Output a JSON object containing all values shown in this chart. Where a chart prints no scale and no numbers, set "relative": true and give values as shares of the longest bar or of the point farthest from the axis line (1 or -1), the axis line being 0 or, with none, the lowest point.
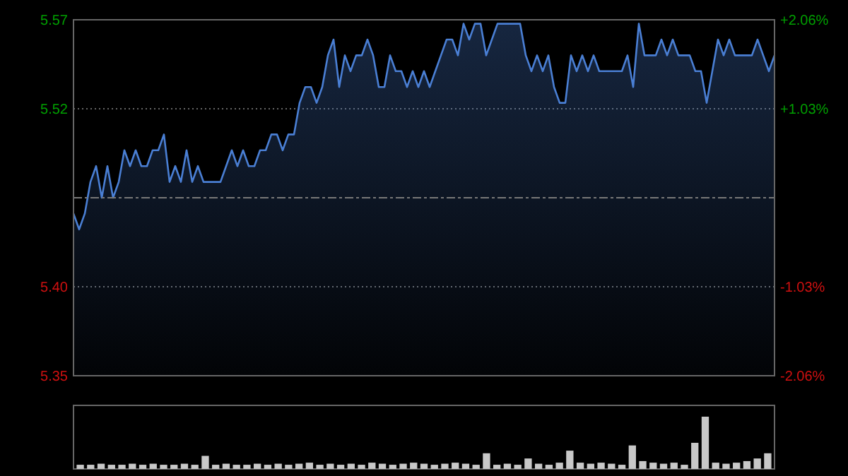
{
  "chart_data": [
    {
      "type": "area",
      "categories": [
        null,
        null,
        null,
        null,
        null,
        null,
        null,
        null,
        null,
        null,
        null,
        null,
        null,
        null,
        null,
        null,
        null,
        null,
        null,
        null,
        null,
        null,
        null,
        null,
        null,
        null,
        null,
        null,
        null,
        null,
        null,
        null,
        null,
        null,
        null,
        null,
        null,
        null,
        null,
        null,
        null,
        null,
        null,
        null,
        null,
        null,
        null,
        null,
        null,
        null,
        null,
        null,
        null,
        null,
        null,
        null,
        null,
        null,
        null,
        null,
        null,
        null,
        null,
        null,
        null,
        null,
        null,
        null,
        null,
        null,
        null,
        null,
        null,
        null,
        null,
        null,
        null,
        null,
        null,
        null,
        null,
        null,
        null,
        null,
        null,
        null,
        null,
        null,
        null,
        null,
        null,
        null,
        null,
        null,
        null,
        null,
        null,
        null,
        null,
        null,
        null,
        null,
        null,
        null,
        null,
        null,
        null,
        null,
        null,
        null,
        null,
        null,
        null,
        null,
        null,
        null,
        null,
        null,
        null,
        null,
        null,
        null,
        null,
        null,
        null
      ],
      "series": [
        {
          "color": "#4a7fd4",
          "values": [
            5.45,
            5.44,
            5.45,
            5.47,
            5.48,
            5.46,
            5.48,
            5.46,
            5.47,
            5.49,
            5.48,
            5.49,
            5.48,
            5.48,
            5.49,
            5.49,
            5.5,
            5.47,
            5.48,
            5.47,
            5.49,
            5.47,
            5.48,
            5.47,
            5.47,
            5.47,
            5.47,
            5.48,
            5.49,
            5.48,
            5.49,
            5.48,
            5.48,
            5.49,
            5.49,
            5.5,
            5.5,
            5.49,
            5.5,
            5.5,
            5.52,
            5.53,
            5.53,
            5.52,
            5.53,
            5.55,
            5.56,
            5.53,
            5.55,
            5.54,
            5.55,
            5.55,
            5.56,
            5.55,
            5.53,
            5.53,
            5.55,
            5.54,
            5.54,
            5.53,
            5.54,
            5.53,
            5.54,
            5.53,
            5.54,
            5.55,
            5.56,
            5.56,
            5.55,
            5.57,
            5.56,
            5.57,
            5.57,
            5.55,
            5.56,
            5.57,
            5.57,
            5.57,
            5.57,
            5.57,
            5.55,
            5.54,
            5.55,
            5.54,
            5.55,
            5.53,
            5.52,
            5.52,
            5.55,
            5.54,
            5.55,
            5.54,
            5.55,
            5.54,
            5.54,
            5.54,
            5.54,
            5.54,
            5.55,
            5.53,
            5.57,
            5.55,
            5.55,
            5.55,
            5.56,
            5.55,
            5.56,
            5.55,
            5.55,
            5.55,
            5.54,
            5.54,
            5.52,
            5.54,
            5.56,
            5.55,
            5.56,
            5.55,
            5.55,
            5.55,
            5.55,
            5.56,
            5.55,
            5.54,
            5.55
          ]
        }
      ],
      "ylim": [
        5.3475,
        5.5725
      ],
      "yticks": [
        {
          "value": 5.3475,
          "label": "5.35"
        },
        {
          "value": 5.4038,
          "label": "5.40"
        },
        {
          "value": 5.5162,
          "label": "5.52"
        },
        {
          "value": 5.5725,
          "label": "5.57"
        }
      ],
      "y2lim": [
        -2.06,
        2.06
      ],
      "y2ticks": [
        {
          "value": -2.06,
          "label": "-2.06%"
        },
        {
          "value": -1.03,
          "label": "-1.03%"
        },
        {
          "value": 1.03,
          "label": "+1.03%"
        },
        {
          "value": 2.06,
          "label": "+2.06%"
        }
      ],
      "ref_lines": [
        {
          "axis": "y",
          "value": 5.46,
          "line_style": "dashed"
        }
      ],
      "grid": "y"
    },
    {
      "type": "bar",
      "relative": true,
      "color": "#c8c8c8",
      "categories": [
        null,
        null,
        null,
        null,
        null,
        null,
        null,
        null,
        null,
        null,
        null,
        null,
        null,
        null,
        null,
        null,
        null,
        null,
        null,
        null,
        null,
        null,
        null,
        null,
        null,
        null,
        null,
        null,
        null,
        null,
        null,
        null,
        null,
        null,
        null,
        null,
        null,
        null,
        null,
        null,
        null,
        null,
        null,
        null,
        null,
        null,
        null,
        null,
        null,
        null,
        null,
        null,
        null,
        null,
        null,
        null,
        null,
        null,
        null,
        null,
        null,
        null,
        null,
        null,
        null,
        null,
        null
      ],
      "values": [
        0.08,
        0.08,
        0.1,
        0.08,
        0.08,
        0.1,
        0.08,
        0.1,
        0.08,
        0.08,
        0.1,
        0.08,
        0.25,
        0.08,
        0.1,
        0.08,
        0.08,
        0.1,
        0.08,
        0.1,
        0.08,
        0.1,
        0.12,
        0.08,
        0.1,
        0.08,
        0.1,
        0.08,
        0.12,
        0.1,
        0.08,
        0.1,
        0.12,
        0.1,
        0.08,
        0.1,
        0.12,
        0.1,
        0.08,
        0.3,
        0.08,
        0.1,
        0.08,
        0.2,
        0.1,
        0.08,
        0.12,
        0.35,
        0.12,
        0.1,
        0.12,
        0.1,
        0.08,
        0.45,
        0.15,
        0.12,
        0.1,
        0.12,
        0.08,
        0.5,
        1,
        0.12,
        0.1,
        0.12,
        0.15,
        0.2,
        0.3
      ]
    }
  ]
}
